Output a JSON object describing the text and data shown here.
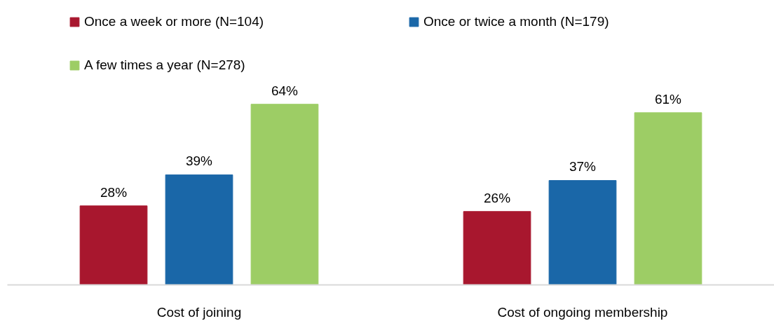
{
  "chart_data": {
    "type": "bar",
    "categories": [
      "Cost of joining",
      "Cost of ongoing membership"
    ],
    "series": [
      {
        "name": "Once a week or more (N=104)",
        "color": "#a8172e",
        "values": [
          28,
          26
        ],
        "value_labels": [
          "28%",
          "26%"
        ]
      },
      {
        "name": "Once or twice a month (N=179)",
        "color": "#1a67a8",
        "values": [
          39,
          37
        ],
        "value_labels": [
          "39%",
          "37%"
        ]
      },
      {
        "name": "A few times a year (N=278)",
        "color": "#9dcd65",
        "values": [
          64,
          61
        ],
        "value_labels": [
          "64%",
          "61%"
        ]
      }
    ],
    "legend": "top"
  }
}
